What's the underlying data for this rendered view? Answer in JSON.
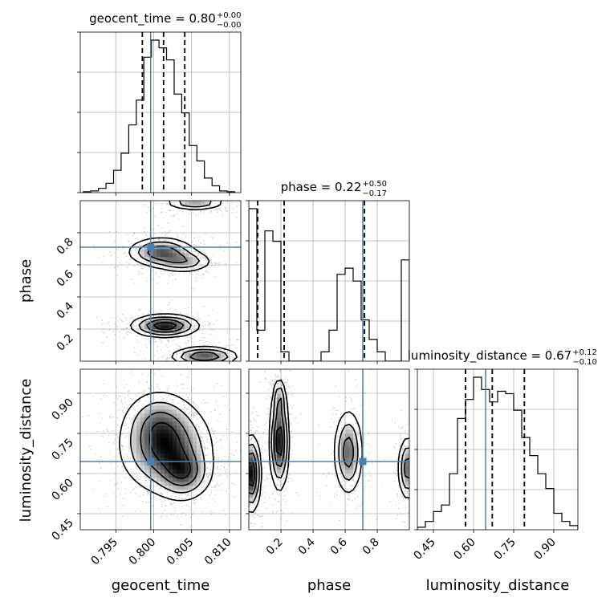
{
  "colors": {
    "truth": "#4682b4",
    "hist": "#000000",
    "grid": "#b0b0b0",
    "background": "#ffffff"
  },
  "chart_data": {
    "type": "corner",
    "grid": true,
    "parameters": [
      "geocent_time",
      "phase",
      "luminosity_distance"
    ],
    "truths": {
      "geocent_time": 0.7996,
      "phase": 0.71,
      "luminosity_distance": 0.645
    },
    "ranges": {
      "geocent_time": [
        0.7903,
        0.8115
      ],
      "phase": [
        0.0,
        1.0
      ],
      "luminosity_distance": [
        0.39,
        0.99
      ]
    },
    "titles": [
      {
        "name": "geocent_time",
        "value": "0.80",
        "plus": "+0.00",
        "minus": "−0.00"
      },
      {
        "name": "phase",
        "value": "0.22",
        "plus": "+0.50",
        "minus": "−0.17"
      },
      {
        "name": "luminosity_distance",
        "value": "0.67",
        "plus": "+0.12",
        "minus": "−0.10"
      }
    ],
    "ticks": {
      "geocent_time": [
        "0.795",
        "0.800",
        "0.805",
        "0.810"
      ],
      "phase": [
        "0.2",
        "0.4",
        "0.6",
        "0.8"
      ],
      "luminosity_distance": [
        "0.45",
        "0.60",
        "0.75",
        "0.90"
      ]
    },
    "axis_labels": {
      "x": [
        "geocent_time",
        "phase",
        "luminosity_distance"
      ],
      "y": [
        "phase",
        "luminosity_distance"
      ]
    },
    "histograms": [
      {
        "param": "geocent_time",
        "bin_edges": [
          0.7907,
          0.7917,
          0.7927,
          0.7937,
          0.7947,
          0.7957,
          0.7967,
          0.7977,
          0.7987,
          0.7997,
          0.8007,
          0.8017,
          0.8027,
          0.8037,
          0.8047,
          0.8057,
          0.8067,
          0.8077,
          0.8087,
          0.8097,
          0.8107
        ],
        "counts": [
          1,
          2,
          5,
          11,
          26,
          46,
          79,
          108,
          158,
          178,
          169,
          155,
          115,
          93,
          55,
          37,
          17,
          8,
          2,
          1
        ],
        "quantiles": [
          0.7985,
          0.8013,
          0.8041
        ]
      },
      {
        "param": "phase",
        "bin_edges": [
          0,
          0.05,
          0.1,
          0.15,
          0.2,
          0.25,
          0.3,
          0.35,
          0.4,
          0.45,
          0.5,
          0.55,
          0.6,
          0.65,
          0.7,
          0.75,
          0.8,
          0.85,
          0.9,
          0.95,
          1.0
        ],
        "counts": [
          295,
          60,
          252,
          232,
          18,
          0,
          0,
          0,
          0,
          18,
          60,
          168,
          180,
          155,
          80,
          42,
          18,
          0,
          0,
          196
        ],
        "quantiles": [
          0.055,
          0.22,
          0.72
        ]
      },
      {
        "param": "luminosity_distance",
        "bin_edges": [
          0.39,
          0.42,
          0.45,
          0.48,
          0.51,
          0.54,
          0.57,
          0.6,
          0.63,
          0.66,
          0.69,
          0.72,
          0.75,
          0.78,
          0.81,
          0.84,
          0.87,
          0.9,
          0.93,
          0.96,
          0.99
        ],
        "counts": [
          3,
          10,
          22,
          30,
          68,
          135,
          158,
          185,
          170,
          155,
          168,
          165,
          145,
          112,
          90,
          68,
          50,
          20,
          10,
          5
        ],
        "quantiles": [
          0.57,
          0.67,
          0.79
        ]
      }
    ]
  }
}
